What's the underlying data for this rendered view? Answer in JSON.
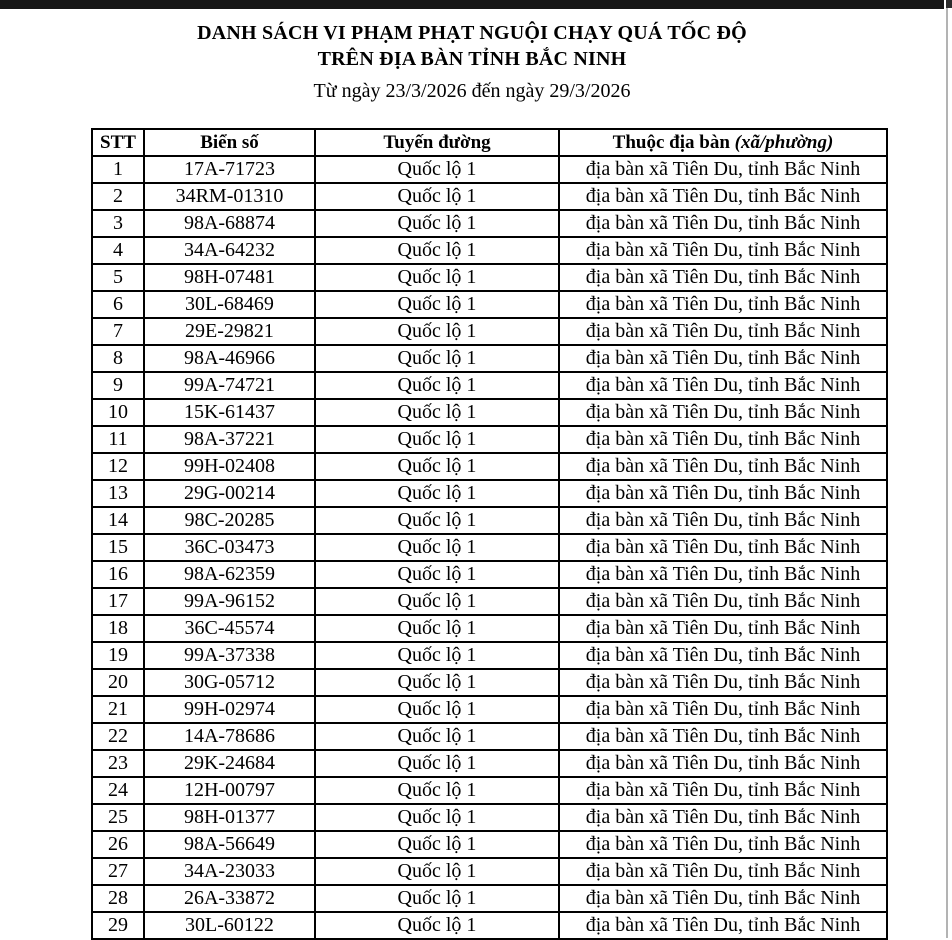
{
  "page": {
    "top_bar_color": "#161616",
    "page_edge_line_color": "#b3b3b3",
    "paper_color": "#ffffff",
    "text_color": "#000000"
  },
  "header": {
    "title_line1": "DANH SÁCH VI PHẠM PHẠT NGUỘI CHẠY QUÁ TỐC ĐỘ",
    "title_line2": "TRÊN ĐỊA BÀN TỈNH BẮC NINH",
    "date_range": "Từ ngày 23/3/2026 đến ngày 29/3/2026"
  },
  "table": {
    "columns": {
      "stt": "STT",
      "plate": "Biển số",
      "route": "Tuyến đường",
      "area": "Thuộc địa bàn",
      "area_suffix": "(xã/phường)"
    },
    "rows": [
      {
        "stt": "1",
        "plate": "17A-71723",
        "route": "Quốc lộ 1",
        "area": "địa bàn xã Tiên Du, tỉnh Bắc Ninh"
      },
      {
        "stt": "2",
        "plate": "34RM-01310",
        "route": "Quốc lộ 1",
        "area": "địa bàn xã Tiên Du, tỉnh Bắc Ninh"
      },
      {
        "stt": "3",
        "plate": "98A-68874",
        "route": "Quốc lộ 1",
        "area": "địa bàn xã Tiên Du, tỉnh Bắc Ninh"
      },
      {
        "stt": "4",
        "plate": "34A-64232",
        "route": "Quốc lộ 1",
        "area": "địa bàn xã Tiên Du, tỉnh Bắc Ninh"
      },
      {
        "stt": "5",
        "plate": "98H-07481",
        "route": "Quốc lộ 1",
        "area": "địa bàn xã Tiên Du, tỉnh Bắc Ninh"
      },
      {
        "stt": "6",
        "plate": "30L-68469",
        "route": "Quốc lộ 1",
        "area": "địa bàn xã Tiên Du, tỉnh Bắc Ninh"
      },
      {
        "stt": "7",
        "plate": "29E-29821",
        "route": "Quốc lộ 1",
        "area": "địa bàn xã Tiên Du, tỉnh Bắc Ninh"
      },
      {
        "stt": "8",
        "plate": "98A-46966",
        "route": "Quốc lộ 1",
        "area": "địa bàn xã Tiên Du, tỉnh Bắc Ninh"
      },
      {
        "stt": "9",
        "plate": "99A-74721",
        "route": "Quốc lộ 1",
        "area": "địa bàn xã Tiên Du, tỉnh Bắc Ninh"
      },
      {
        "stt": "10",
        "plate": "15K-61437",
        "route": "Quốc lộ 1",
        "area": "địa bàn xã Tiên Du, tỉnh Bắc Ninh"
      },
      {
        "stt": "11",
        "plate": "98A-37221",
        "route": "Quốc lộ 1",
        "area": "địa bàn xã Tiên Du, tỉnh Bắc Ninh"
      },
      {
        "stt": "12",
        "plate": "99H-02408",
        "route": "Quốc lộ 1",
        "area": "địa bàn xã Tiên Du, tỉnh Bắc Ninh"
      },
      {
        "stt": "13",
        "plate": "29G-00214",
        "route": "Quốc lộ 1",
        "area": "địa bàn xã Tiên Du, tỉnh Bắc Ninh"
      },
      {
        "stt": "14",
        "plate": "98C-20285",
        "route": "Quốc lộ 1",
        "area": "địa bàn xã Tiên Du, tỉnh Bắc Ninh"
      },
      {
        "stt": "15",
        "plate": "36C-03473",
        "route": "Quốc lộ 1",
        "area": "địa bàn xã Tiên Du, tỉnh Bắc Ninh"
      },
      {
        "stt": "16",
        "plate": "98A-62359",
        "route": "Quốc lộ 1",
        "area": "địa bàn xã Tiên Du, tỉnh Bắc Ninh"
      },
      {
        "stt": "17",
        "plate": "99A-96152",
        "route": "Quốc lộ 1",
        "area": "địa bàn xã Tiên Du, tỉnh Bắc Ninh"
      },
      {
        "stt": "18",
        "plate": "36C-45574",
        "route": "Quốc lộ 1",
        "area": "địa bàn xã Tiên Du, tỉnh Bắc Ninh"
      },
      {
        "stt": "19",
        "plate": "99A-37338",
        "route": "Quốc lộ 1",
        "area": "địa bàn xã Tiên Du, tỉnh Bắc Ninh"
      },
      {
        "stt": "20",
        "plate": "30G-05712",
        "route": "Quốc lộ 1",
        "area": "địa bàn xã Tiên Du, tỉnh Bắc Ninh"
      },
      {
        "stt": "21",
        "plate": "99H-02974",
        "route": "Quốc lộ 1",
        "area": "địa bàn xã Tiên Du, tỉnh Bắc Ninh"
      },
      {
        "stt": "22",
        "plate": "14A-78686",
        "route": "Quốc lộ 1",
        "area": "địa bàn xã Tiên Du, tỉnh Bắc Ninh"
      },
      {
        "stt": "23",
        "plate": "29K-24684",
        "route": "Quốc lộ 1",
        "area": "địa bàn xã Tiên Du, tỉnh Bắc Ninh"
      },
      {
        "stt": "24",
        "plate": "12H-00797",
        "route": "Quốc lộ 1",
        "area": "địa bàn xã Tiên Du, tỉnh Bắc Ninh"
      },
      {
        "stt": "25",
        "plate": "98H-01377",
        "route": "Quốc lộ 1",
        "area": "địa bàn xã Tiên Du, tỉnh Bắc Ninh"
      },
      {
        "stt": "26",
        "plate": "98A-56649",
        "route": "Quốc lộ 1",
        "area": "địa bàn xã Tiên Du, tỉnh Bắc Ninh"
      },
      {
        "stt": "27",
        "plate": "34A-23033",
        "route": "Quốc lộ 1",
        "area": "địa bàn xã Tiên Du, tỉnh Bắc Ninh"
      },
      {
        "stt": "28",
        "plate": "26A-33872",
        "route": "Quốc lộ 1",
        "area": "địa bàn xã Tiên Du, tỉnh Bắc Ninh"
      },
      {
        "stt": "29",
        "plate": "30L-60122",
        "route": "Quốc lộ 1",
        "area": "địa bàn xã Tiên Du, tỉnh Bắc Ninh"
      }
    ]
  }
}
